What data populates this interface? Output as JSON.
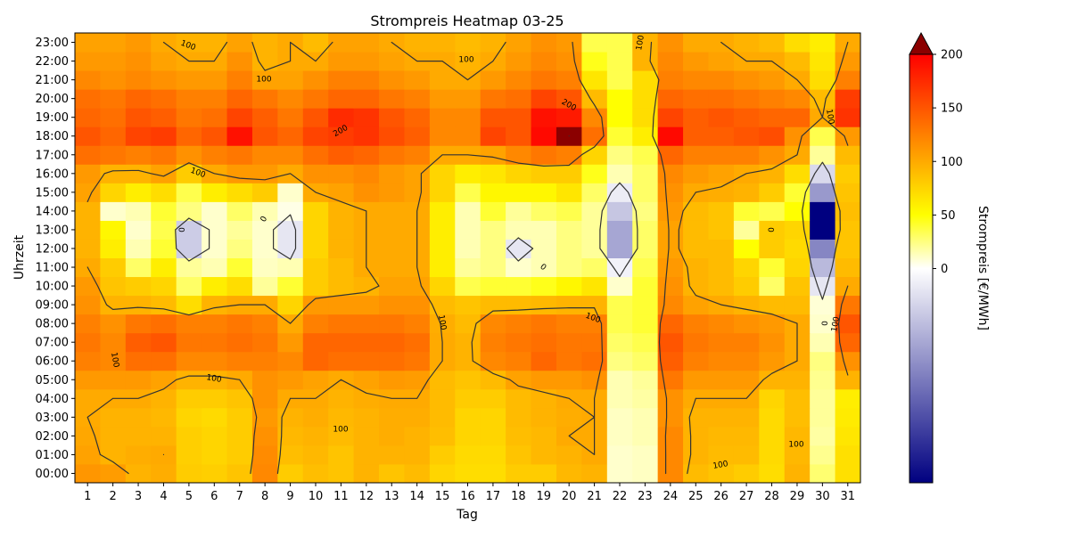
{
  "chart_data": {
    "type": "heatmap",
    "title": "Strompreis Heatmap 03-25",
    "xlabel": "Tag",
    "ylabel": "Uhrzeit",
    "colorbar_label": "Strompreis [€/MWh]",
    "x_categories": [
      "1",
      "2",
      "3",
      "4",
      "5",
      "6",
      "7",
      "8",
      "9",
      "10",
      "11",
      "12",
      "13",
      "14",
      "15",
      "16",
      "17",
      "18",
      "19",
      "20",
      "21",
      "22",
      "23",
      "24",
      "25",
      "26",
      "27",
      "28",
      "29",
      "30",
      "31"
    ],
    "y_categories": [
      "00:00",
      "01:00",
      "02:00",
      "03:00",
      "04:00",
      "05:00",
      "06:00",
      "07:00",
      "08:00",
      "09:00",
      "10:00",
      "11:00",
      "12:00",
      "13:00",
      "14:00",
      "15:00",
      "16:00",
      "17:00",
      "18:00",
      "19:00",
      "20:00",
      "21:00",
      "22:00",
      "23:00"
    ],
    "colorbar_ticks": [
      0,
      50,
      100,
      150,
      200
    ],
    "colorbar_ticklabels": [
      "0",
      "50",
      "100",
      "150",
      "200"
    ],
    "color_range": [
      -200,
      200
    ],
    "colorbar_extend": "max",
    "contour_level_labels": [
      "0",
      "100",
      "200"
    ],
    "colors": {
      "negative": "#000080",
      "zero": "#ffffff",
      "mid": "#ffff00",
      "high": "#ff0000",
      "max": "#8b0000",
      "contour": "#333333"
    },
    "values": [
      [
        112,
        108,
        95,
        98,
        80,
        78,
        85,
        120,
        80,
        88,
        85,
        95,
        85,
        90,
        75,
        70,
        70,
        80,
        80,
        92,
        95,
        10,
        12,
        120,
        90,
        85,
        80,
        70,
        95,
        28,
        68
      ],
      [
        105,
        95,
        98,
        100,
        78,
        75,
        80,
        118,
        88,
        92,
        85,
        95,
        95,
        95,
        80,
        72,
        72,
        85,
        92,
        95,
        100,
        10,
        12,
        120,
        95,
        90,
        90,
        72,
        92,
        22,
        68
      ],
      [
        102,
        95,
        95,
        95,
        78,
        75,
        80,
        115,
        92,
        95,
        90,
        95,
        98,
        95,
        88,
        75,
        75,
        88,
        92,
        100,
        100,
        12,
        15,
        120,
        95,
        92,
        92,
        72,
        92,
        18,
        65
      ],
      [
        100,
        95,
        95,
        92,
        75,
        72,
        80,
        110,
        95,
        98,
        92,
        95,
        98,
        98,
        90,
        75,
        75,
        90,
        95,
        98,
        100,
        12,
        15,
        115,
        95,
        95,
        95,
        72,
        88,
        20,
        62
      ],
      [
        100,
        100,
        100,
        95,
        80,
        80,
        85,
        115,
        100,
        100,
        95,
        98,
        100,
        100,
        90,
        80,
        80,
        90,
        95,
        100,
        100,
        15,
        18,
        115,
        100,
        100,
        100,
        75,
        88,
        20,
        60
      ],
      [
        110,
        110,
        110,
        105,
        95,
        95,
        100,
        115,
        110,
        105,
        100,
        105,
        110,
        108,
        90,
        85,
        90,
        105,
        110,
        110,
        115,
        15,
        20,
        130,
        110,
        110,
        110,
        95,
        95,
        22,
        95
      ],
      [
        125,
        120,
        135,
        135,
        120,
        120,
        125,
        125,
        120,
        140,
        135,
        135,
        135,
        130,
        100,
        95,
        120,
        125,
        140,
        130,
        135,
        25,
        30,
        145,
        125,
        120,
        120,
        110,
        100,
        25,
        115
      ],
      [
        130,
        120,
        145,
        150,
        130,
        130,
        135,
        130,
        110,
        140,
        140,
        140,
        140,
        135,
        100,
        95,
        125,
        130,
        135,
        130,
        130,
        30,
        35,
        150,
        130,
        125,
        125,
        115,
        100,
        15,
        140
      ],
      [
        125,
        115,
        130,
        135,
        125,
        125,
        130,
        125,
        100,
        125,
        130,
        130,
        130,
        125,
        98,
        90,
        120,
        125,
        130,
        125,
        125,
        35,
        40,
        140,
        125,
        120,
        115,
        110,
        100,
        10,
        150
      ],
      [
        115,
        95,
        95,
        90,
        70,
        95,
        100,
        100,
        75,
        110,
        110,
        110,
        115,
        115,
        90,
        85,
        90,
        90,
        92,
        95,
        95,
        35,
        40,
        120,
        105,
        100,
        95,
        90,
        90,
        8,
        130
      ],
      [
        110,
        85,
        80,
        75,
        30,
        60,
        70,
        20,
        40,
        80,
        90,
        95,
        105,
        105,
        75,
        35,
        40,
        40,
        45,
        55,
        65,
        10,
        40,
        115,
        95,
        90,
        80,
        30,
        85,
        -20,
        100
      ],
      [
        100,
        80,
        30,
        60,
        20,
        15,
        40,
        12,
        15,
        80,
        90,
        100,
        100,
        100,
        60,
        20,
        25,
        10,
        15,
        25,
        30,
        -10,
        35,
        110,
        95,
        90,
        75,
        40,
        75,
        -55,
        90
      ],
      [
        95,
        60,
        15,
        40,
        -40,
        10,
        25,
        10,
        -20,
        75,
        95,
        100,
        100,
        100,
        60,
        15,
        25,
        -20,
        15,
        25,
        20,
        -70,
        30,
        105,
        90,
        90,
        50,
        80,
        72,
        -95,
        85
      ],
      [
        95,
        55,
        10,
        35,
        -40,
        10,
        20,
        10,
        -20,
        75,
        95,
        100,
        100,
        100,
        60,
        15,
        25,
        15,
        15,
        25,
        20,
        -70,
        30,
        105,
        90,
        85,
        20,
        80,
        75,
        -200,
        85
      ],
      [
        95,
        10,
        15,
        40,
        25,
        10,
        30,
        15,
        5,
        75,
        95,
        100,
        100,
        100,
        60,
        15,
        40,
        20,
        30,
        35,
        20,
        -45,
        25,
        110,
        90,
        85,
        40,
        35,
        50,
        -200,
        88
      ],
      [
        105,
        75,
        60,
        70,
        35,
        60,
        70,
        80,
        10,
        100,
        105,
        115,
        110,
        105,
        75,
        35,
        55,
        55,
        55,
        65,
        30,
        -15,
        30,
        115,
        100,
        98,
        95,
        80,
        40,
        -80,
        85
      ],
      [
        110,
        95,
        95,
        105,
        80,
        100,
        110,
        110,
        100,
        115,
        115,
        120,
        110,
        105,
        75,
        60,
        65,
        75,
        80,
        80,
        45,
        15,
        30,
        120,
        110,
        105,
        100,
        95,
        70,
        -30,
        80
      ],
      [
        135,
        130,
        125,
        130,
        115,
        125,
        130,
        120,
        120,
        135,
        145,
        140,
        130,
        125,
        100,
        100,
        105,
        120,
        130,
        125,
        75,
        25,
        35,
        140,
        125,
        125,
        125,
        115,
        100,
        20,
        90
      ],
      [
        150,
        140,
        160,
        165,
        140,
        150,
        190,
        150,
        140,
        160,
        165,
        170,
        155,
        145,
        120,
        120,
        160,
        150,
        195,
        200,
        135,
        40,
        60,
        195,
        145,
        145,
        150,
        155,
        115,
        35,
        110
      ],
      [
        140,
        135,
        150,
        145,
        130,
        135,
        160,
        145,
        130,
        150,
        175,
        170,
        150,
        140,
        120,
        120,
        150,
        150,
        190,
        185,
        120,
        50,
        70,
        160,
        145,
        150,
        145,
        140,
        140,
        100,
        170
      ],
      [
        135,
        130,
        140,
        135,
        125,
        125,
        140,
        130,
        120,
        130,
        140,
        140,
        130,
        125,
        110,
        110,
        130,
        135,
        160,
        150,
        90,
        50,
        70,
        140,
        135,
        135,
        130,
        125,
        120,
        90,
        165
      ],
      [
        120,
        115,
        120,
        115,
        110,
        110,
        125,
        105,
        105,
        115,
        125,
        125,
        115,
        110,
        100,
        100,
        110,
        120,
        130,
        125,
        65,
        35,
        70,
        125,
        120,
        120,
        115,
        110,
        100,
        70,
        125
      ],
      [
        110,
        110,
        115,
        105,
        100,
        100,
        115,
        95,
        100,
        100,
        110,
        110,
        105,
        100,
        100,
        95,
        100,
        110,
        120,
        115,
        45,
        35,
        95,
        120,
        110,
        105,
        100,
        100,
        90,
        65,
        110
      ],
      [
        105,
        105,
        110,
        100,
        95,
        95,
        105,
        95,
        100,
        90,
        105,
        105,
        100,
        95,
        95,
        90,
        95,
        105,
        115,
        110,
        35,
        35,
        95,
        115,
        100,
        100,
        95,
        90,
        70,
        60,
        100
      ]
    ]
  }
}
